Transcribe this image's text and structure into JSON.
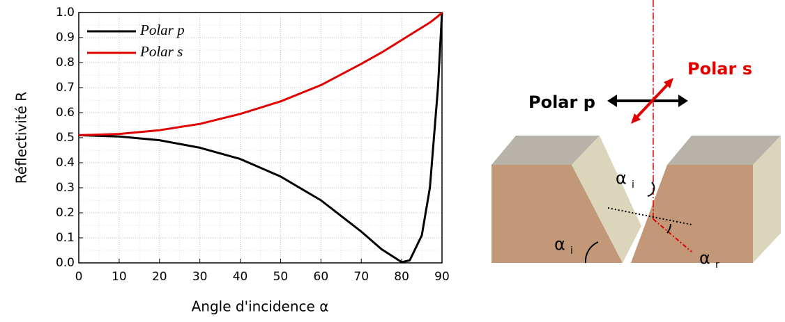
{
  "chart_data": {
    "type": "line",
    "x_label": "Angle d'incidence α",
    "y_label": "Réflectivité R",
    "x": [
      0,
      10,
      20,
      30,
      40,
      50,
      60,
      70,
      75,
      80,
      82,
      85,
      87,
      89,
      90
    ],
    "series": [
      {
        "name": "Polar p",
        "color": "#000000",
        "values": [
          0.51,
          0.505,
          0.49,
          0.46,
          0.415,
          0.345,
          0.25,
          0.125,
          0.055,
          0.003,
          0.01,
          0.11,
          0.3,
          0.7,
          1.0
        ]
      },
      {
        "name": "Polar s",
        "color": "#e00000",
        "values": [
          0.51,
          0.515,
          0.53,
          0.555,
          0.595,
          0.645,
          0.71,
          0.795,
          0.84,
          0.89,
          0.91,
          0.94,
          0.96,
          0.985,
          1.0
        ]
      }
    ],
    "xlim": [
      0,
      90
    ],
    "ylim": [
      0,
      1
    ],
    "xticks": [
      0,
      10,
      20,
      30,
      40,
      50,
      60,
      70,
      80,
      90
    ],
    "yticks": [
      {
        "value": 0,
        "label": "0.0"
      },
      0.1,
      0.2,
      0.3,
      0.4,
      0.5,
      0.6,
      0.7,
      0.8,
      0.9,
      {
        "value": 1,
        "label": "1.0"
      }
    ],
    "grid": true,
    "legend": "top-left"
  },
  "diagram": {
    "polar_p": "Polar p",
    "polar_s": "Polar s",
    "angle_incidence_top": {
      "symbol": "α",
      "sub": "i"
    },
    "angle_incidence_bottom": {
      "symbol": "α",
      "sub": "i"
    },
    "angle_reflection": {
      "symbol": "α",
      "sub": "r"
    }
  }
}
